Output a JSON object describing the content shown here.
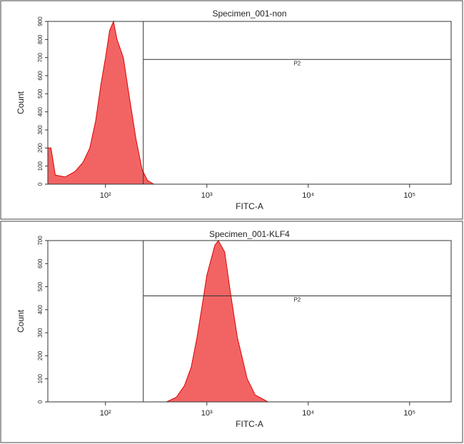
{
  "chart_data": [
    {
      "type": "area",
      "title": "Specimen_001-non",
      "xlabel": "FITC-A",
      "ylabel": "Count",
      "xscale": "log",
      "x": [
        27,
        29,
        32,
        40,
        50,
        60,
        70,
        80,
        90,
        100,
        110,
        120,
        130,
        150,
        170,
        200,
        230,
        260,
        300
      ],
      "values": [
        200,
        200,
        50,
        40,
        70,
        120,
        200,
        350,
        550,
        700,
        850,
        900,
        800,
        700,
        500,
        250,
        80,
        20,
        0
      ],
      "color": "#f26464",
      "edge_color": "#e00000",
      "xlim": [
        27,
        257000
      ],
      "ylim": [
        0,
        900
      ],
      "xticks": [
        {
          "value": 100,
          "label": "10²"
        },
        {
          "value": 1000,
          "label": "10³"
        },
        {
          "value": 10000,
          "label": "10⁴"
        },
        {
          "value": 100000,
          "label": "10⁵"
        }
      ],
      "yticks": [
        0,
        100,
        200,
        300,
        400,
        500,
        600,
        700,
        800,
        900
      ],
      "gate": {
        "label": "P2",
        "x": 236,
        "y": 690
      }
    },
    {
      "type": "area",
      "title": "Specimen_001-KLF4",
      "xlabel": "FITC-A",
      "ylabel": "Count",
      "xscale": "log",
      "x": [
        400,
        500,
        600,
        700,
        800,
        900,
        1000,
        1200,
        1300,
        1500,
        1700,
        2000,
        2500,
        3000,
        4000
      ],
      "values": [
        0,
        20,
        70,
        150,
        280,
        420,
        550,
        680,
        700,
        650,
        480,
        280,
        100,
        30,
        0
      ],
      "color": "#f26464",
      "edge_color": "#e00000",
      "xlim": [
        27,
        257000
      ],
      "ylim": [
        0,
        700
      ],
      "xticks": [
        {
          "value": 100,
          "label": "10²"
        },
        {
          "value": 1000,
          "label": "10³"
        },
        {
          "value": 10000,
          "label": "10⁴"
        },
        {
          "value": 100000,
          "label": "10⁵"
        }
      ],
      "yticks": [
        0,
        100,
        200,
        300,
        400,
        500,
        600,
        700
      ],
      "gate": {
        "label": "P2",
        "x": 236,
        "y": 460
      }
    }
  ]
}
